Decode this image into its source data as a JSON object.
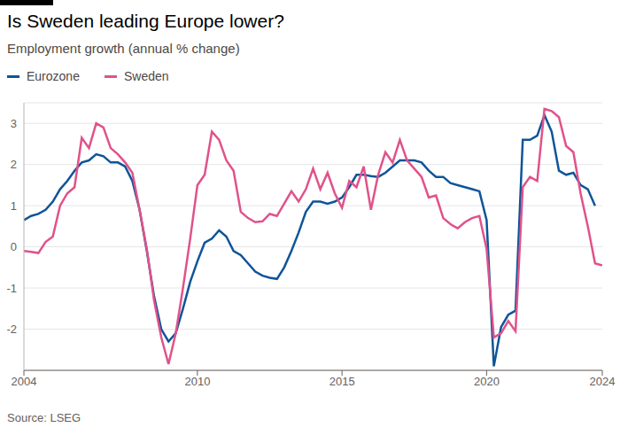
{
  "chart_data": {
    "type": "line",
    "title": "Is Sweden leading Europe lower?",
    "subtitle": "Employment growth (annual % change)",
    "source": "Source: LSEG",
    "x": [
      2004,
      2004.25,
      2004.5,
      2004.75,
      2005,
      2005.25,
      2005.5,
      2005.75,
      2006,
      2006.25,
      2006.5,
      2006.75,
      2007,
      2007.25,
      2007.5,
      2007.75,
      2008,
      2008.25,
      2008.5,
      2008.75,
      2009,
      2009.25,
      2009.5,
      2009.75,
      2010,
      2010.25,
      2010.5,
      2010.75,
      2011,
      2011.25,
      2011.5,
      2011.75,
      2012,
      2012.25,
      2012.5,
      2012.75,
      2013,
      2013.25,
      2013.5,
      2013.75,
      2014,
      2014.25,
      2014.5,
      2014.75,
      2015,
      2015.25,
      2015.5,
      2015.75,
      2016,
      2016.25,
      2016.5,
      2016.75,
      2017,
      2017.25,
      2017.5,
      2017.75,
      2018,
      2018.25,
      2018.5,
      2018.75,
      2019,
      2019.25,
      2019.5,
      2019.75,
      2020,
      2020.25,
      2020.5,
      2020.75,
      2021,
      2021.25,
      2021.5,
      2021.75,
      2022,
      2022.25,
      2022.5,
      2022.75,
      2023,
      2023.25,
      2023.5,
      2023.75,
      2024
    ],
    "series": [
      {
        "name": "Eurozone",
        "color": "#0f5499",
        "values": [
          0.65,
          0.75,
          0.8,
          0.9,
          1.1,
          1.4,
          1.6,
          1.85,
          2.05,
          2.1,
          2.25,
          2.2,
          2.05,
          2.05,
          1.95,
          1.6,
          0.9,
          -0.1,
          -1.2,
          -2.0,
          -2.3,
          -2.1,
          -1.5,
          -0.85,
          -0.35,
          0.1,
          0.2,
          0.4,
          0.25,
          -0.1,
          -0.2,
          -0.4,
          -0.6,
          -0.7,
          -0.75,
          -0.78,
          -0.5,
          -0.1,
          0.35,
          0.85,
          1.1,
          1.1,
          1.05,
          1.1,
          1.2,
          1.45,
          1.75,
          1.75,
          1.72,
          1.7,
          1.8,
          1.95,
          2.1,
          2.1,
          2.1,
          2.05,
          1.85,
          1.7,
          1.7,
          1.55,
          1.5,
          1.45,
          1.4,
          1.35,
          0.65,
          -2.9,
          -1.95,
          -1.65,
          -1.55,
          2.6,
          2.6,
          2.7,
          3.2,
          2.8,
          1.85,
          1.75,
          1.8,
          1.5,
          1.4,
          1.0,
          null
        ]
      },
      {
        "name": "Sweden",
        "color": "#e0528a",
        "values": [
          -0.1,
          -0.12,
          -0.15,
          0.12,
          0.25,
          1.0,
          1.3,
          1.45,
          2.65,
          2.4,
          3.0,
          2.9,
          2.4,
          2.25,
          2.05,
          1.8,
          0.9,
          -0.05,
          -1.3,
          -2.2,
          -2.85,
          -2.1,
          -1.0,
          0.2,
          1.5,
          1.75,
          2.8,
          2.6,
          2.1,
          1.85,
          0.85,
          0.7,
          0.6,
          0.62,
          0.8,
          0.75,
          1.05,
          1.35,
          1.1,
          1.4,
          1.9,
          1.4,
          1.8,
          1.3,
          0.95,
          1.6,
          1.45,
          1.95,
          0.9,
          1.75,
          2.3,
          2.05,
          2.6,
          2.1,
          1.9,
          1.7,
          1.2,
          1.25,
          0.7,
          0.55,
          0.45,
          0.6,
          0.7,
          0.75,
          -0.05,
          -2.2,
          -2.1,
          -1.8,
          -2.05,
          1.45,
          1.7,
          1.6,
          3.35,
          3.3,
          3.15,
          2.45,
          2.3,
          1.3,
          0.5,
          -0.4,
          -0.45
        ]
      }
    ],
    "xlim": [
      2004,
      2024
    ],
    "xticks": [
      2004,
      2010,
      2015,
      2020,
      2024
    ],
    "ylim": [
      -3,
      3.5
    ],
    "yticks": [
      -2,
      -1,
      0,
      1,
      2,
      3
    ],
    "grid": true
  }
}
